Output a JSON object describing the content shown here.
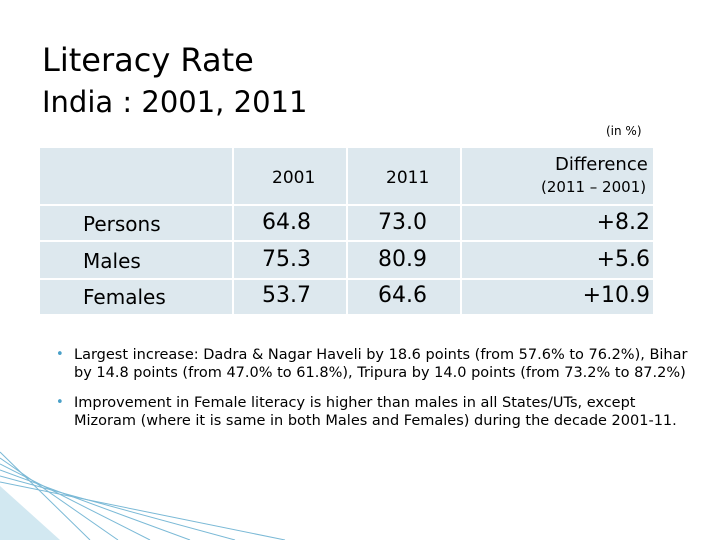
{
  "title_line1": "Literacy Rate",
  "title_line2": "India : 2001, 2011",
  "unit_note": "(in %)",
  "table": {
    "headers": [
      "2001",
      "2011",
      "Difference",
      "(2011 – 2001)"
    ],
    "rows": [
      {
        "label": "Persons",
        "y2001": "64.8",
        "y2011": "73.0",
        "diff": "+8.2"
      },
      {
        "label": "Males",
        "y2001": "75.3",
        "y2011": "80.9",
        "diff": "+5.6"
      },
      {
        "label": "Females",
        "y2001": "53.7",
        "y2011": "64.6",
        "diff": "+10.9"
      }
    ]
  },
  "bullets": [
    "Largest increase: Dadra & Nagar Haveli  by 18.6 points (from 57.6% to 76.2%), Bihar by 14.8 points (from 47.0% to 61.8%), Tripura by 14.0 points (from 73.2% to 87.2%)",
    "Improvement in Female literacy is higher than males in all States/UTs, except Mizoram (where it is same in both Males and Females) during the decade 2001-11."
  ],
  "colors": {
    "table_fill": "#dde8ee",
    "bullet": "#4aa0c8",
    "corner_line": "#4aa0c8"
  }
}
